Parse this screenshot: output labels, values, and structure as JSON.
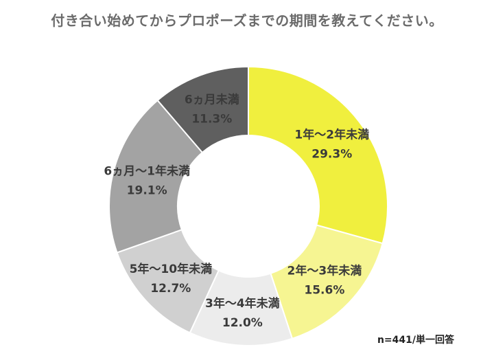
{
  "chart_data": {
    "type": "pie",
    "title": "付き合い始めてからプロポーズまでの期間を教えてください。",
    "donut": true,
    "slices": [
      {
        "label": "1年～2年未満",
        "value": 29.3,
        "value_label": "29.3%",
        "color": "#f0ef3e"
      },
      {
        "label": "2年～3年未満",
        "value": 15.6,
        "value_label": "15.6%",
        "color": "#f6f592"
      },
      {
        "label": "3年～4年未満",
        "value": 12.0,
        "value_label": "12.0%",
        "color": "#ececec"
      },
      {
        "label": "5年～10年未満",
        "value": 12.7,
        "value_label": "12.7%",
        "color": "#d0d0d0"
      },
      {
        "label": "6ヵ月～1年未満",
        "value": 19.1,
        "value_label": "19.1%",
        "color": "#a3a3a3"
      },
      {
        "label": "6ヵ月未満",
        "value": 11.3,
        "value_label": "11.3%",
        "color": "#5f5f5f"
      }
    ],
    "note": "n=441/単一回答"
  }
}
